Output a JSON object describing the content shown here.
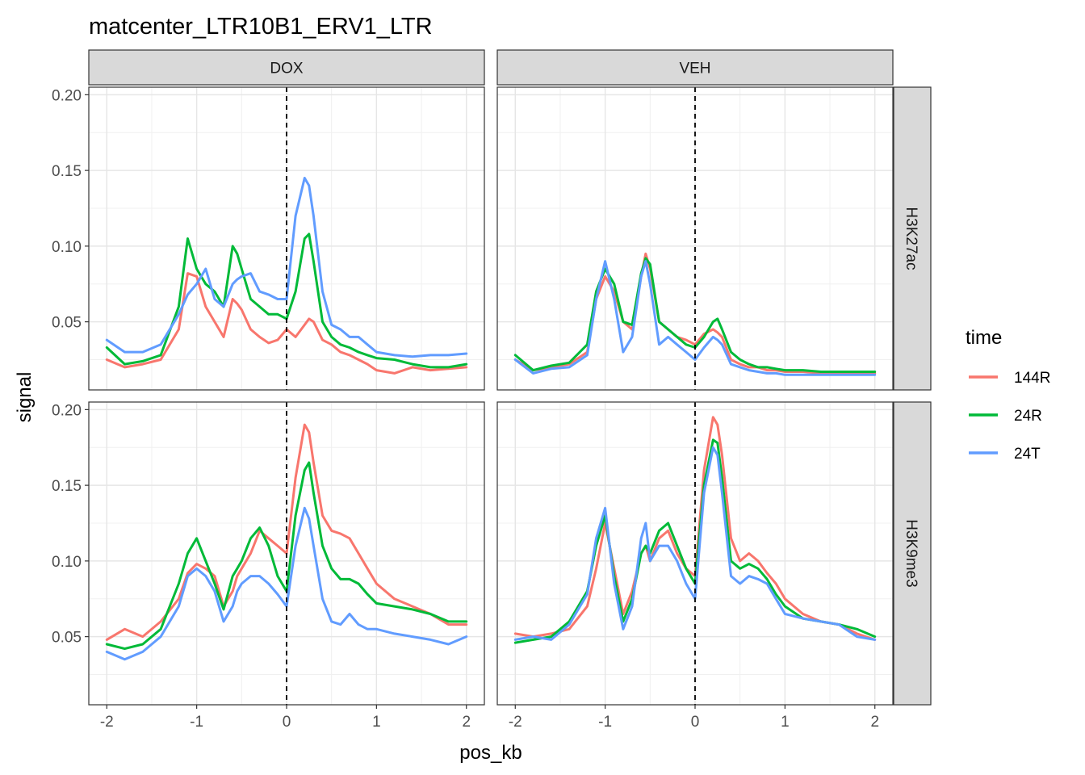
{
  "chart_data": {
    "type": "line",
    "title": "matcenter_LTR10B1_ERV1_LTR",
    "xlabel": "pos_kb",
    "ylabel": "signal",
    "xlim": [
      -2.2,
      2.2
    ],
    "ylim": [
      0.005,
      0.205
    ],
    "x_ticks": [
      -2,
      -1,
      0,
      1,
      2
    ],
    "x_tick_labels": [
      "-2",
      "-1",
      "0",
      "1",
      "2"
    ],
    "y_ticks": [
      0.05,
      0.1,
      0.15,
      0.2
    ],
    "y_tick_labels": [
      "0.05",
      "0.10",
      "0.15",
      "0.20"
    ],
    "vline_x": 0,
    "grid": true,
    "facet_cols": [
      "DOX",
      "VEH"
    ],
    "facet_rows": [
      "H3K27ac",
      "H3K9me3"
    ],
    "legend": {
      "title": "time",
      "position": "right",
      "entries": [
        {
          "name": "144R",
          "color": "#F8766D"
        },
        {
          "name": "24R",
          "color": "#00BA38"
        },
        {
          "name": "24T",
          "color": "#619CFF"
        }
      ]
    },
    "x": [
      -2.0,
      -1.8,
      -1.6,
      -1.4,
      -1.2,
      -1.1,
      -1.0,
      -0.9,
      -0.8,
      -0.7,
      -0.6,
      -0.55,
      -0.5,
      -0.4,
      -0.3,
      -0.2,
      -0.1,
      0.0,
      0.1,
      0.2,
      0.25,
      0.3,
      0.4,
      0.5,
      0.6,
      0.7,
      0.8,
      0.9,
      1.0,
      1.2,
      1.4,
      1.6,
      1.8,
      2.0
    ],
    "panels": [
      {
        "col": "DOX",
        "row": "H3K27ac",
        "series": [
          {
            "name": "144R",
            "values": [
              0.025,
              0.02,
              0.022,
              0.025,
              0.045,
              0.082,
              0.08,
              0.06,
              0.05,
              0.04,
              0.065,
              0.062,
              0.058,
              0.045,
              0.04,
              0.036,
              0.038,
              0.045,
              0.04,
              0.048,
              0.052,
              0.05,
              0.038,
              0.035,
              0.03,
              0.028,
              0.025,
              0.022,
              0.018,
              0.016,
              0.02,
              0.018,
              0.019,
              0.02
            ]
          },
          {
            "name": "24R",
            "values": [
              0.033,
              0.022,
              0.024,
              0.028,
              0.06,
              0.105,
              0.085,
              0.075,
              0.07,
              0.06,
              0.1,
              0.095,
              0.085,
              0.065,
              0.06,
              0.055,
              0.055,
              0.052,
              0.07,
              0.105,
              0.108,
              0.09,
              0.05,
              0.04,
              0.035,
              0.033,
              0.03,
              0.028,
              0.026,
              0.025,
              0.022,
              0.02,
              0.02,
              0.022
            ]
          },
          {
            "name": "24T",
            "values": [
              0.038,
              0.03,
              0.03,
              0.035,
              0.055,
              0.068,
              0.075,
              0.085,
              0.065,
              0.06,
              0.075,
              0.078,
              0.08,
              0.082,
              0.07,
              0.068,
              0.065,
              0.065,
              0.12,
              0.145,
              0.14,
              0.12,
              0.07,
              0.048,
              0.045,
              0.04,
              0.04,
              0.035,
              0.03,
              0.028,
              0.027,
              0.028,
              0.028,
              0.029
            ]
          }
        ]
      },
      {
        "col": "VEH",
        "row": "H3K27ac",
        "series": [
          {
            "name": "144R",
            "values": [
              0.025,
              0.018,
              0.02,
              0.022,
              0.03,
              0.065,
              0.08,
              0.07,
              0.05,
              0.045,
              0.08,
              0.095,
              0.085,
              0.05,
              0.045,
              0.04,
              0.038,
              0.035,
              0.042,
              0.045,
              0.043,
              0.04,
              0.025,
              0.022,
              0.02,
              0.02,
              0.018,
              0.018,
              0.017,
              0.017,
              0.016,
              0.016,
              0.016,
              0.016
            ]
          },
          {
            "name": "24R",
            "values": [
              0.028,
              0.018,
              0.021,
              0.023,
              0.035,
              0.07,
              0.085,
              0.075,
              0.05,
              0.048,
              0.082,
              0.092,
              0.088,
              0.05,
              0.045,
              0.04,
              0.035,
              0.033,
              0.04,
              0.05,
              0.052,
              0.045,
              0.03,
              0.025,
              0.022,
              0.02,
              0.02,
              0.019,
              0.018,
              0.018,
              0.017,
              0.017,
              0.017,
              0.017
            ]
          },
          {
            "name": "24T",
            "values": [
              0.025,
              0.016,
              0.019,
              0.02,
              0.028,
              0.065,
              0.09,
              0.065,
              0.03,
              0.04,
              0.08,
              0.09,
              0.075,
              0.035,
              0.04,
              0.035,
              0.03,
              0.025,
              0.033,
              0.04,
              0.038,
              0.035,
              0.022,
              0.02,
              0.018,
              0.017,
              0.016,
              0.016,
              0.015,
              0.015,
              0.015,
              0.015,
              0.015,
              0.015
            ]
          }
        ]
      },
      {
        "col": "DOX",
        "row": "H3K9me3",
        "series": [
          {
            "name": "144R",
            "values": [
              0.048,
              0.055,
              0.05,
              0.06,
              0.075,
              0.092,
              0.098,
              0.095,
              0.09,
              0.07,
              0.08,
              0.09,
              0.095,
              0.105,
              0.12,
              0.115,
              0.11,
              0.105,
              0.155,
              0.19,
              0.185,
              0.165,
              0.13,
              0.12,
              0.118,
              0.115,
              0.105,
              0.095,
              0.085,
              0.075,
              0.07,
              0.065,
              0.058,
              0.058
            ]
          },
          {
            "name": "24R",
            "values": [
              0.045,
              0.042,
              0.045,
              0.055,
              0.085,
              0.105,
              0.115,
              0.1,
              0.085,
              0.068,
              0.09,
              0.095,
              0.1,
              0.115,
              0.122,
              0.11,
              0.09,
              0.08,
              0.13,
              0.16,
              0.165,
              0.145,
              0.11,
              0.095,
              0.088,
              0.088,
              0.085,
              0.078,
              0.072,
              0.07,
              0.068,
              0.065,
              0.06,
              0.06
            ]
          },
          {
            "name": "24T",
            "values": [
              0.04,
              0.035,
              0.04,
              0.05,
              0.07,
              0.09,
              0.095,
              0.09,
              0.08,
              0.06,
              0.07,
              0.08,
              0.085,
              0.09,
              0.09,
              0.085,
              0.078,
              0.07,
              0.11,
              0.135,
              0.128,
              0.11,
              0.075,
              0.06,
              0.058,
              0.065,
              0.058,
              0.055,
              0.055,
              0.052,
              0.05,
              0.048,
              0.045,
              0.05
            ]
          }
        ]
      },
      {
        "col": "VEH",
        "row": "H3K9me3",
        "series": [
          {
            "name": "144R",
            "values": [
              0.052,
              0.05,
              0.052,
              0.055,
              0.07,
              0.095,
              0.125,
              0.095,
              0.065,
              0.08,
              0.105,
              0.11,
              0.1,
              0.115,
              0.12,
              0.105,
              0.095,
              0.09,
              0.16,
              0.195,
              0.19,
              0.17,
              0.115,
              0.1,
              0.105,
              0.1,
              0.092,
              0.085,
              0.075,
              0.065,
              0.06,
              0.058,
              0.052,
              0.048
            ]
          },
          {
            "name": "24R",
            "values": [
              0.046,
              0.048,
              0.05,
              0.06,
              0.08,
              0.11,
              0.13,
              0.09,
              0.06,
              0.075,
              0.105,
              0.11,
              0.105,
              0.12,
              0.125,
              0.11,
              0.095,
              0.085,
              0.15,
              0.18,
              0.178,
              0.155,
              0.1,
              0.095,
              0.098,
              0.095,
              0.088,
              0.078,
              0.07,
              0.062,
              0.06,
              0.058,
              0.055,
              0.05
            ]
          },
          {
            "name": "24T",
            "values": [
              0.048,
              0.05,
              0.048,
              0.058,
              0.078,
              0.115,
              0.135,
              0.085,
              0.055,
              0.07,
              0.115,
              0.125,
              0.1,
              0.11,
              0.11,
              0.1,
              0.085,
              0.075,
              0.145,
              0.175,
              0.17,
              0.145,
              0.09,
              0.085,
              0.09,
              0.088,
              0.085,
              0.075,
              0.065,
              0.062,
              0.06,
              0.058,
              0.05,
              0.048
            ]
          }
        ]
      }
    ]
  }
}
